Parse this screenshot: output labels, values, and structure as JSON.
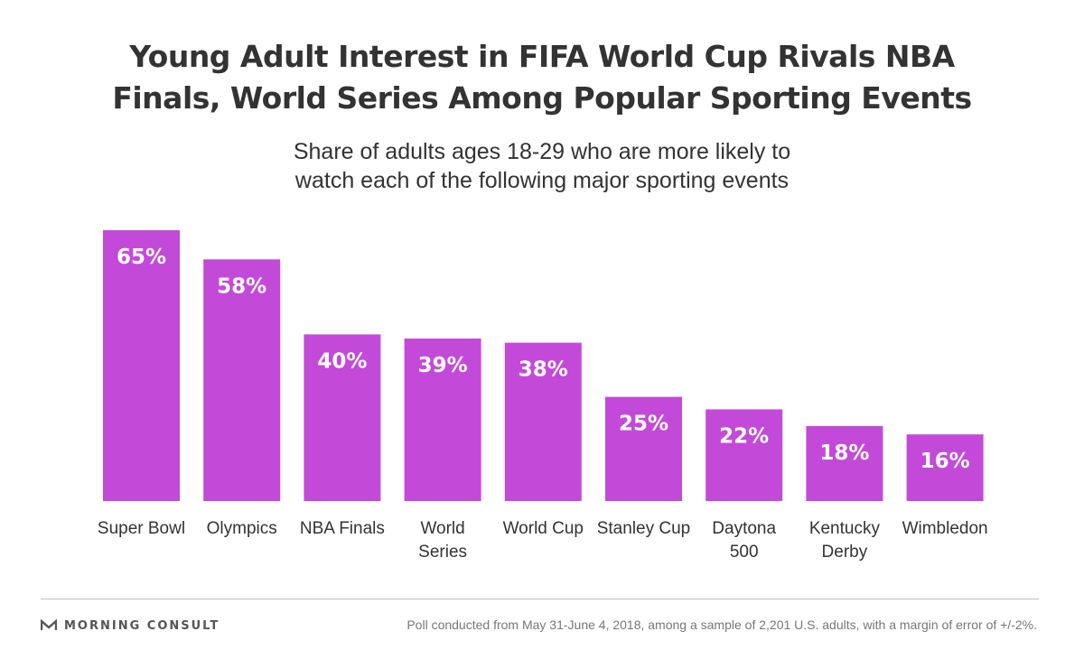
{
  "header": {
    "title_line1": "Young Adult Interest in FIFA World Cup Rivals NBA",
    "title_line2": "Finals, World Series Among Popular Sporting Events",
    "subtitle_line1": "Share of adults ages 18-29 who are more likely to",
    "subtitle_line2": "watch each of the following major sporting events"
  },
  "chart_data": {
    "type": "bar",
    "title": "Young Adult Interest in FIFA World Cup Rivals NBA Finals, World Series Among Popular Sporting Events",
    "subtitle": "Share of adults ages 18-29 who are more likely to watch each of the following major sporting events",
    "categories": [
      [
        "Super Bowl"
      ],
      [
        "Olympics"
      ],
      [
        "NBA Finals"
      ],
      [
        "World",
        "Series"
      ],
      [
        "World Cup"
      ],
      [
        "Stanley Cup"
      ],
      [
        "Daytona",
        "500"
      ],
      [
        "Kentucky",
        "Derby"
      ],
      [
        "Wimbledon"
      ]
    ],
    "values": [
      65,
      58,
      40,
      39,
      38,
      25,
      22,
      18,
      16
    ],
    "value_labels": [
      "65%",
      "58%",
      "40%",
      "39%",
      "38%",
      "25%",
      "22%",
      "18%",
      "16%"
    ],
    "unit": "%",
    "ylim": [
      0,
      65
    ],
    "grid": false,
    "legend": "none",
    "xlabel": "",
    "ylabel": "",
    "bar_color": "#c34ad9"
  },
  "footer": {
    "brand": "MORNING CONSULT",
    "note": "Poll conducted from May 31-June 4, 2018, among a sample of 2,201 U.S. adults, with a margin of error of +/-2%."
  }
}
